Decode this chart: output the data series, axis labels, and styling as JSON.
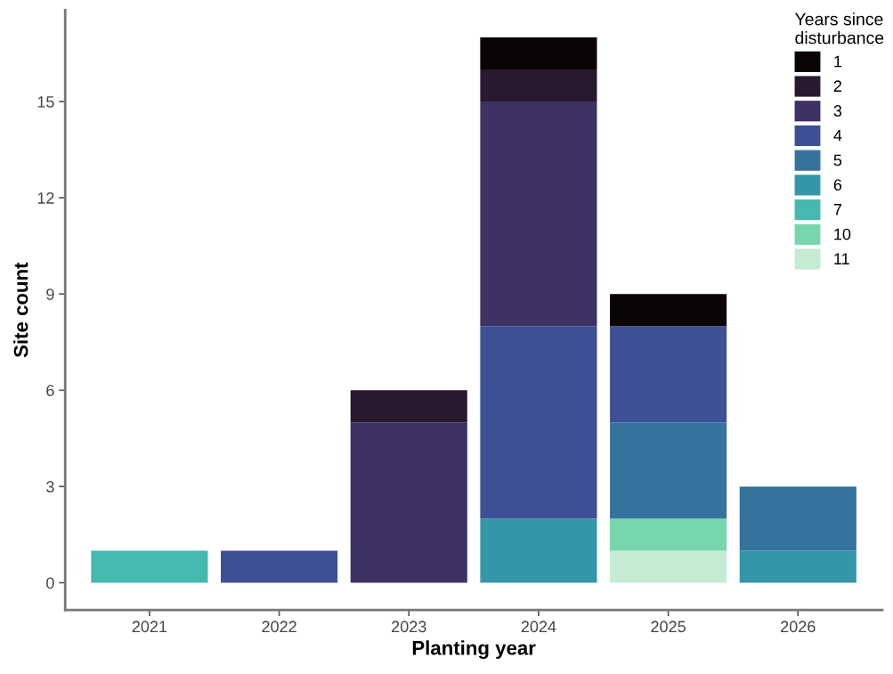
{
  "chart_data": {
    "type": "bar",
    "stacked": true,
    "xlabel": "Planting year",
    "ylabel": "Site count",
    "legend_title": "Years since\ndisturbance",
    "legend": "top right",
    "grid": false,
    "categories": [
      "2021",
      "2022",
      "2023",
      "2024",
      "2025",
      "2026"
    ],
    "ylim": [
      -0.85,
      17.85
    ],
    "yticks": [
      0,
      3,
      6,
      9,
      12,
      15
    ],
    "series": [
      {
        "name": "11",
        "color": "#c5ebd2",
        "values": [
          null,
          null,
          null,
          null,
          1,
          null
        ]
      },
      {
        "name": "10",
        "color": "#78d6ae",
        "values": [
          null,
          null,
          null,
          null,
          1,
          null
        ]
      },
      {
        "name": "7",
        "color": "#43b9b0",
        "values": [
          1,
          null,
          null,
          null,
          null,
          null
        ]
      },
      {
        "name": "6",
        "color": "#3497a9",
        "values": [
          null,
          null,
          null,
          2,
          null,
          1
        ]
      },
      {
        "name": "5",
        "color": "#36729e",
        "values": [
          null,
          null,
          null,
          null,
          3,
          2
        ]
      },
      {
        "name": "4",
        "color": "#3e5095",
        "values": [
          null,
          1,
          null,
          6,
          3,
          null
        ]
      },
      {
        "name": "3",
        "color": "#3e3163",
        "values": [
          null,
          null,
          5,
          7,
          null,
          null
        ]
      },
      {
        "name": "2",
        "color": "#28192f",
        "values": [
          null,
          null,
          1,
          1,
          null,
          null
        ]
      },
      {
        "name": "1",
        "color": "#0b0405",
        "values": [
          null,
          null,
          null,
          1,
          1,
          null
        ]
      }
    ]
  }
}
